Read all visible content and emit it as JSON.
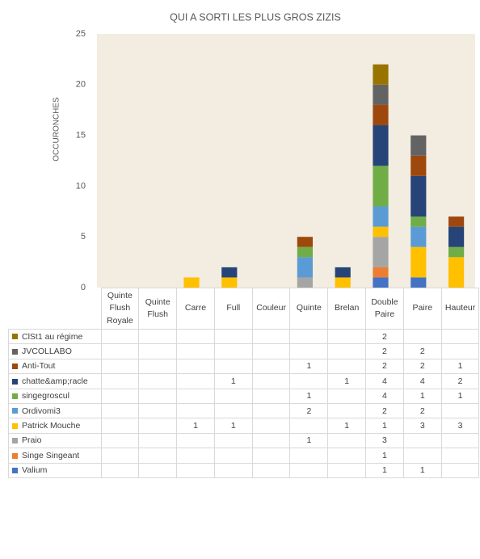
{
  "chart_data": {
    "type": "stacked-bar",
    "title": "QUI A SORTI LES PLUS GROS ZIZIS",
    "y_label": "OCCURONCHES",
    "categories": [
      "Quinte Flush Royale",
      "Quinte Flush",
      "Carre",
      "Full",
      "Couleur",
      "Quinte",
      "Brelan",
      "Double Paire",
      "Paire",
      "Hauteur"
    ],
    "series": [
      {
        "name": "ClSt1 au régime",
        "color": "#997300",
        "values": [
          null,
          null,
          null,
          null,
          null,
          null,
          null,
          2,
          null,
          null
        ]
      },
      {
        "name": "JVCOLLABO",
        "color": "#636363",
        "values": [
          null,
          null,
          null,
          null,
          null,
          null,
          null,
          2,
          2,
          null
        ]
      },
      {
        "name": "Anti-Tout",
        "color": "#9e480e",
        "values": [
          null,
          null,
          null,
          null,
          null,
          1,
          null,
          2,
          2,
          1
        ]
      },
      {
        "name": "chatte&amp;racle",
        "color": "#264478",
        "values": [
          null,
          null,
          null,
          1,
          null,
          null,
          1,
          4,
          4,
          2
        ]
      },
      {
        "name": "singegroscul",
        "color": "#70ad47",
        "values": [
          null,
          null,
          null,
          null,
          null,
          1,
          null,
          4,
          1,
          1
        ]
      },
      {
        "name": "Ordivomi3",
        "color": "#5b9bd5",
        "values": [
          null,
          null,
          null,
          null,
          null,
          2,
          null,
          2,
          2,
          null
        ]
      },
      {
        "name": "Patrick Mouche",
        "color": "#ffc000",
        "values": [
          null,
          null,
          1,
          1,
          null,
          null,
          1,
          1,
          3,
          3
        ]
      },
      {
        "name": "Praio",
        "color": "#a5a5a5",
        "values": [
          null,
          null,
          null,
          null,
          null,
          1,
          null,
          3,
          null,
          null
        ]
      },
      {
        "name": "Singe Singeant",
        "color": "#ed7d31",
        "values": [
          null,
          null,
          null,
          null,
          null,
          null,
          null,
          1,
          null,
          null
        ]
      },
      {
        "name": "Valium",
        "color": "#4472c4",
        "values": [
          null,
          null,
          null,
          null,
          null,
          null,
          null,
          1,
          1,
          null
        ]
      }
    ],
    "ylim": [
      0,
      25
    ],
    "yticks": [
      0,
      5,
      10,
      15,
      20,
      25
    ],
    "grid": false
  }
}
